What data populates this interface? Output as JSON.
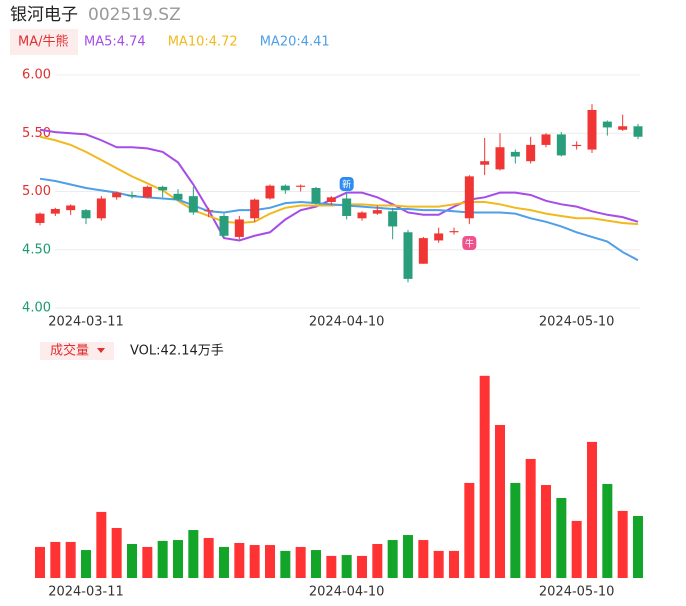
{
  "header": {
    "name": "银河电子",
    "code": "002519.SZ"
  },
  "chart_data": [
    {
      "type": "candlestick",
      "legend_button": "MA/牛熊",
      "categories": [
        null,
        null,
        null,
        "2024-03-11",
        null,
        null,
        null,
        null,
        null,
        null,
        null,
        null,
        null,
        null,
        null,
        null,
        null,
        null,
        null,
        null,
        "2024-04-10",
        null,
        null,
        null,
        null,
        null,
        null,
        null,
        null,
        null,
        null,
        null,
        null,
        null,
        null,
        "2024-05-10",
        null,
        null,
        null,
        null
      ],
      "open": [
        4.73,
        4.81,
        4.84,
        4.84,
        4.77,
        4.95,
        4.97,
        4.95,
        5.04,
        4.98,
        4.96,
        4.83,
        4.79,
        4.61,
        4.77,
        4.94,
        5.05,
        5.04,
        5.03,
        4.91,
        4.94,
        4.77,
        4.81,
        4.83,
        4.65,
        4.38,
        4.58,
        4.65,
        4.77,
        5.23,
        5.19,
        5.34,
        5.26,
        5.4,
        5.49,
        5.39,
        5.36,
        5.6,
        5.53,
        5.56
      ],
      "high": [
        4.82,
        4.86,
        4.89,
        4.85,
        4.96,
        5.0,
        5.0,
        5.05,
        5.05,
        5.02,
        5.04,
        4.86,
        4.81,
        4.79,
        4.94,
        5.06,
        5.06,
        5.06,
        5.04,
        4.96,
        4.99,
        4.83,
        4.88,
        4.86,
        4.67,
        4.61,
        4.69,
        4.69,
        5.14,
        5.46,
        5.5,
        5.36,
        5.47,
        5.5,
        5.51,
        5.43,
        5.75,
        5.61,
        5.66,
        5.58
      ],
      "low": [
        4.71,
        4.79,
        4.8,
        4.72,
        4.75,
        4.93,
        4.94,
        4.94,
        4.95,
        4.92,
        4.8,
        4.78,
        4.6,
        4.59,
        4.74,
        4.93,
        4.98,
        5.0,
        4.89,
        4.88,
        4.76,
        4.75,
        4.8,
        4.59,
        4.22,
        4.38,
        4.56,
        4.63,
        4.72,
        5.14,
        5.18,
        5.24,
        5.24,
        5.38,
        5.3,
        5.36,
        5.33,
        5.48,
        5.52,
        5.45
      ],
      "close": [
        4.81,
        4.85,
        4.88,
        4.77,
        4.94,
        4.99,
        4.96,
        5.04,
        5.01,
        4.93,
        4.82,
        4.84,
        4.62,
        4.76,
        4.93,
        5.05,
        5.01,
        5.05,
        4.9,
        4.95,
        4.79,
        4.82,
        4.84,
        4.7,
        4.25,
        4.6,
        4.64,
        4.66,
        5.13,
        5.26,
        5.38,
        5.3,
        5.4,
        5.49,
        5.31,
        5.4,
        5.7,
        5.55,
        5.56,
        5.47
      ],
      "up_color": "#f03535",
      "down_color": "#2a9d7c",
      "series": [
        {
          "name": "MA5:4.74",
          "color": "#a64ce8",
          "values": [
            5.53,
            5.51,
            5.5,
            5.49,
            5.44,
            5.38,
            5.38,
            5.37,
            5.34,
            5.25,
            5.06,
            4.84,
            4.6,
            4.58,
            4.62,
            4.65,
            4.76,
            4.84,
            4.87,
            4.93,
            4.99,
            4.99,
            4.95,
            4.89,
            4.82,
            4.8,
            4.8,
            4.87,
            4.93,
            4.95,
            4.99,
            4.99,
            4.97,
            4.92,
            4.89,
            4.87,
            4.83,
            4.8,
            4.78,
            4.74
          ]
        },
        {
          "name": "MA10:4.72",
          "color": "#f2b91c",
          "values": [
            5.47,
            5.44,
            5.4,
            5.34,
            5.27,
            5.2,
            5.13,
            5.07,
            5.01,
            4.92,
            4.84,
            4.79,
            4.74,
            4.73,
            4.74,
            4.81,
            4.86,
            4.88,
            4.88,
            4.88,
            4.89,
            4.89,
            4.88,
            4.88,
            4.87,
            4.87,
            4.87,
            4.89,
            4.91,
            4.91,
            4.89,
            4.86,
            4.84,
            4.81,
            4.79,
            4.77,
            4.77,
            4.75,
            4.73,
            4.72
          ]
        },
        {
          "name": "MA20:4.41",
          "color": "#4d9fe8",
          "values": [
            5.11,
            5.09,
            5.06,
            5.03,
            5.01,
            4.99,
            4.96,
            4.95,
            4.94,
            4.93,
            4.88,
            4.83,
            4.82,
            4.84,
            4.84,
            4.86,
            4.9,
            4.91,
            4.9,
            4.89,
            4.88,
            4.87,
            4.86,
            4.85,
            4.85,
            4.84,
            4.84,
            4.83,
            4.82,
            4.82,
            4.82,
            4.81,
            4.77,
            4.74,
            4.7,
            4.65,
            4.61,
            4.57,
            4.48,
            4.41
          ]
        }
      ],
      "ylim": [
        4,
        6
      ],
      "yticks": [
        {
          "value": 4,
          "label": "4.00"
        },
        {
          "value": 4.5,
          "label": "4.50"
        },
        {
          "value": 5,
          "label": "5.00"
        },
        {
          "value": 5.5,
          "label": "5.50"
        },
        {
          "value": 6,
          "label": "6.00"
        }
      ],
      "grid": true,
      "annotations": [
        {
          "text": "新",
          "index": 20,
          "color": "#2d8cf0"
        },
        {
          "text": "牛",
          "index": 28,
          "color": "#f0508c"
        }
      ]
    },
    {
      "type": "bar",
      "title": "成交量",
      "legend": "VOL:42.14万手",
      "categories": [
        null,
        null,
        null,
        "2024-03-11",
        null,
        null,
        null,
        null,
        null,
        null,
        null,
        null,
        null,
        null,
        null,
        null,
        null,
        null,
        null,
        null,
        "2024-04-10",
        null,
        null,
        null,
        null,
        null,
        null,
        null,
        null,
        null,
        null,
        null,
        null,
        null,
        null,
        "2024-05-10",
        null,
        null,
        null,
        null
      ],
      "values": [
        21.1,
        24.5,
        24.5,
        19.0,
        44.9,
        34.0,
        23.1,
        21.1,
        25.2,
        25.8,
        32.6,
        27.2,
        21.1,
        23.8,
        22.4,
        22.4,
        18.4,
        21.1,
        19.0,
        15.0,
        15.6,
        15.0,
        23.1,
        25.8,
        29.2,
        25.8,
        18.4,
        18.4,
        64.6,
        137.4,
        104.0,
        64.6,
        80.9,
        63.2,
        54.4,
        38.8,
        92.5,
        63.9,
        45.6,
        42.14
      ],
      "up_color": "#ff3333",
      "down_color": "#12a52a",
      "ylim": [
        0,
        140
      ]
    }
  ]
}
